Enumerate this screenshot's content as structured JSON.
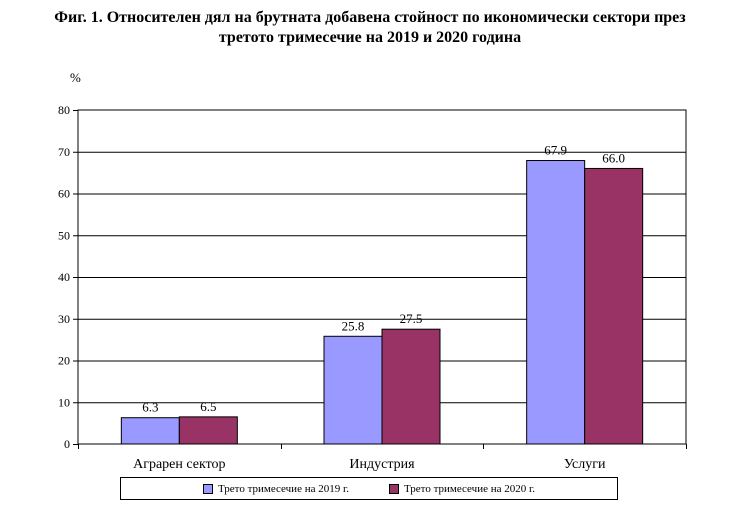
{
  "title_line1": "Фиг. 1. Относителен дял на брутната добавена стойност по икономически сектори през",
  "title_line2": "третото тримесечие на 2019 и 2020 година",
  "colors": {
    "series1": "#9999ff",
    "series2": "#993366"
  },
  "chart_data": {
    "type": "bar",
    "title": "Фиг. 1. Относителен дял на брутната добавена стойност по икономически сектори през третото тримесечие на 2019 и 2020 година",
    "ylabel": "%",
    "xlabel": "",
    "ylim": [
      0,
      80
    ],
    "yticks": [
      0,
      10,
      20,
      30,
      40,
      50,
      60,
      70,
      80
    ],
    "grid": true,
    "legend_position": "bottom",
    "categories": [
      "Аграрен сектор",
      "Индустрия",
      "Услуги"
    ],
    "series": [
      {
        "name": "Трето тримесечие на 2019 г.",
        "values": [
          6.3,
          25.8,
          67.9
        ],
        "labels": [
          "6.3",
          "25.8",
          "67.9"
        ]
      },
      {
        "name": "Трето тримесечие на 2020 г.",
        "values": [
          6.5,
          27.5,
          66.0
        ],
        "labels": [
          "6.5",
          "27.5",
          "66.0"
        ]
      }
    ]
  }
}
